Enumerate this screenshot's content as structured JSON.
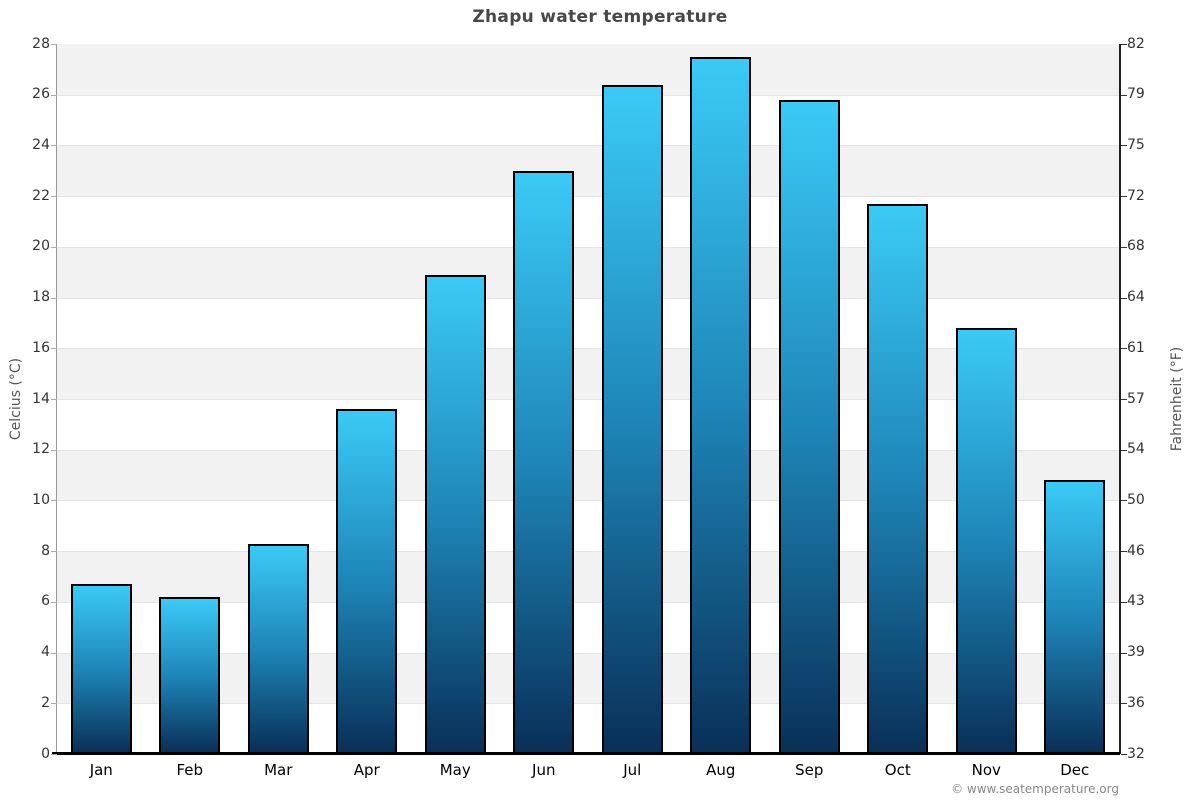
{
  "page": {
    "background": "#ffffff",
    "copyright": "© www.seatemperature.org"
  },
  "chart_data": {
    "type": "bar",
    "title": "Zhapu water temperature",
    "categories": [
      "Jan",
      "Feb",
      "Mar",
      "Apr",
      "May",
      "Jun",
      "Jul",
      "Aug",
      "Sep",
      "Oct",
      "Nov",
      "Dec"
    ],
    "values": [
      6.7,
      6.2,
      8.3,
      13.6,
      18.9,
      23.0,
      26.4,
      27.5,
      25.8,
      21.7,
      16.8,
      10.8
    ],
    "value_unit": "°C",
    "xlabel": "",
    "ylabel_left": "Celcius (°C)",
    "ylabel_right": "Fahrenheit (°F)",
    "ylim_celsius": [
      0,
      28
    ],
    "ytick_step_celsius": 2,
    "yticks_left_top_to_bottom": [
      28,
      26,
      24,
      22,
      20,
      18,
      16,
      14,
      12,
      10,
      8,
      6,
      4,
      2,
      0
    ],
    "yticks_right_top_to_bottom": [
      82,
      79,
      75,
      72,
      68,
      64,
      61,
      57,
      54,
      50,
      46,
      43,
      39,
      36,
      32
    ],
    "legend_position": "none",
    "grid": "alternating horizontal bands, gray band between even ticks starting at top (26-28)",
    "colors": {
      "bar_gradient_top": "#3bcaf7",
      "bar_gradient_mid": "#1e86b8",
      "bar_gradient_bottom": "#093058",
      "bar_border": "#000000",
      "band_gray": "#f2f2f2",
      "band_white": "#ffffff",
      "gridline": "#e4e4e4",
      "left_axis_line": "#999999",
      "right_axis_line": "#222222",
      "x_axis_line": "#000000",
      "tick_mark_left": "#aaaaaa",
      "tick_mark_right": "#333333",
      "title_text": "#484848",
      "tick_text": "#333333",
      "axis_label_text": "#555555",
      "month_text": "#000000",
      "copyright_text": "#888888"
    }
  }
}
